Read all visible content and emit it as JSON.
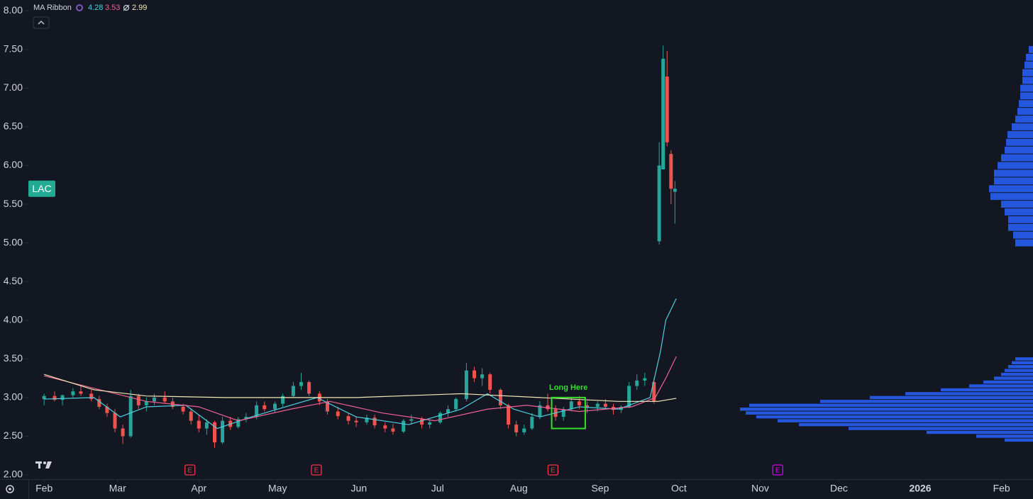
{
  "chart_data": {
    "type": "candlestick",
    "symbol": {
      "label": "LAC",
      "price": 5.7,
      "color": "#22ab94"
    },
    "indicator": {
      "name": "MA Ribbon",
      "values": [
        4.28,
        3.53,
        2.99
      ],
      "colors": [
        "#4dd0e1",
        "#f06292",
        "#f2e8b6"
      ]
    },
    "up_color": "#26a69a",
    "down_color": "#ef5350",
    "xlim": [
      25,
      408
    ],
    "ylim": [
      1.945,
      8.14
    ],
    "xticks": [
      {
        "value": 31,
        "label": "Feb"
      },
      {
        "value": 59,
        "label": "Mar"
      },
      {
        "value": 90,
        "label": "Apr"
      },
      {
        "value": 120,
        "label": "May"
      },
      {
        "value": 151,
        "label": "Jun"
      },
      {
        "value": 181,
        "label": "Jul"
      },
      {
        "value": 212,
        "label": "Aug"
      },
      {
        "value": 243,
        "label": "Sep"
      },
      {
        "value": 273,
        "label": "Oct"
      },
      {
        "value": 304,
        "label": "Nov"
      },
      {
        "value": 334,
        "label": "Dec"
      },
      {
        "value": 365,
        "label": "2026",
        "bold": true
      },
      {
        "value": 396,
        "label": "Feb"
      }
    ],
    "yticks": [
      {
        "value": 2,
        "label": "2.00"
      },
      {
        "value": 2.5,
        "label": "2.50"
      },
      {
        "value": 3,
        "label": "3.00"
      },
      {
        "value": 3.5,
        "label": "3.50"
      },
      {
        "value": 4,
        "label": "4.00"
      },
      {
        "value": 4.5,
        "label": "4.50"
      },
      {
        "value": 5,
        "label": "5.00"
      },
      {
        "value": 5.5,
        "label": "5.50"
      },
      {
        "value": 6,
        "label": "6.00"
      },
      {
        "value": 6.5,
        "label": "6.50"
      },
      {
        "value": 7,
        "label": "7.00"
      },
      {
        "value": 7.5,
        "label": "7.50"
      },
      {
        "value": 8,
        "label": "8.00"
      }
    ],
    "x": [
      31,
      35,
      38,
      42,
      45,
      49,
      52,
      55,
      58,
      61,
      64,
      67,
      70,
      73,
      77,
      80,
      84,
      87,
      90,
      93,
      96,
      99,
      102,
      105,
      108,
      112,
      115,
      119,
      122,
      126,
      129,
      132,
      136,
      139,
      143,
      147,
      150,
      154,
      157,
      161,
      164,
      168,
      171,
      175,
      178,
      182,
      185,
      188,
      192,
      195,
      198,
      201,
      205,
      208,
      211,
      214,
      217,
      220,
      223,
      226,
      229,
      232,
      235,
      238,
      242,
      245,
      248,
      251,
      254,
      257,
      260,
      263.5,
      265.5,
      267,
      268.5,
      270,
      271.5
    ],
    "open": [
      2.98,
      3.02,
      2.97,
      3.03,
      3.08,
      3.05,
      2.98,
      2.88,
      2.8,
      2.6,
      2.5,
      3.02,
      2.9,
      2.95,
      3.0,
      2.95,
      2.88,
      2.82,
      2.7,
      2.6,
      2.68,
      2.42,
      2.7,
      2.62,
      2.72,
      2.75,
      2.9,
      2.85,
      2.92,
      3.02,
      3.15,
      3.2,
      3.05,
      2.95,
      2.82,
      2.76,
      2.7,
      2.68,
      2.74,
      2.64,
      2.6,
      2.56,
      2.7,
      2.72,
      2.65,
      2.68,
      2.8,
      2.85,
      2.98,
      3.35,
      3.25,
      3.3,
      3.1,
      2.9,
      2.65,
      2.55,
      2.6,
      2.75,
      2.9,
      2.85,
      2.75,
      2.85,
      2.95,
      2.9,
      2.88,
      2.92,
      2.88,
      2.84,
      2.88,
      3.15,
      3.22,
      3.2,
      5.02,
      5.95,
      7.15,
      6.15,
      5.66
    ],
    "high": [
      3.05,
      3.08,
      3.04,
      3.12,
      3.15,
      3.1,
      3.02,
      2.92,
      2.85,
      2.65,
      3.1,
      3.05,
      3.0,
      3.05,
      3.08,
      3.0,
      2.92,
      2.86,
      2.78,
      2.72,
      2.7,
      2.75,
      2.75,
      2.75,
      2.8,
      2.95,
      2.95,
      2.95,
      3.05,
      3.2,
      3.32,
      3.22,
      3.08,
      2.98,
      2.88,
      2.8,
      2.75,
      2.78,
      2.78,
      2.68,
      2.66,
      2.72,
      2.78,
      2.75,
      2.72,
      2.82,
      2.9,
      3.0,
      3.45,
      3.4,
      3.38,
      3.32,
      3.12,
      2.92,
      2.7,
      2.65,
      2.8,
      2.95,
      3.05,
      2.9,
      2.88,
      3.0,
      3.02,
      2.95,
      2.95,
      2.98,
      2.92,
      2.9,
      3.2,
      3.3,
      3.32,
      3.25,
      6.3,
      7.55,
      7.48,
      6.2,
      5.8
    ],
    "low": [
      2.9,
      2.95,
      2.9,
      3.0,
      3.02,
      2.95,
      2.85,
      2.75,
      2.55,
      2.4,
      2.48,
      2.85,
      2.82,
      2.9,
      2.92,
      2.85,
      2.78,
      2.65,
      2.55,
      2.52,
      2.35,
      2.4,
      2.58,
      2.6,
      2.68,
      2.72,
      2.82,
      2.8,
      2.88,
      3.0,
      3.1,
      3.02,
      2.9,
      2.78,
      2.72,
      2.65,
      2.62,
      2.65,
      2.6,
      2.55,
      2.52,
      2.54,
      2.65,
      2.6,
      2.6,
      2.66,
      2.75,
      2.82,
      2.95,
      3.2,
      3.15,
      3.05,
      2.85,
      2.6,
      2.5,
      2.52,
      2.58,
      2.72,
      2.82,
      2.7,
      2.7,
      2.82,
      2.85,
      2.8,
      2.82,
      2.85,
      2.78,
      2.8,
      2.86,
      3.1,
      3.15,
      2.92,
      4.98,
      5.95,
      6.25,
      5.5,
      5.25
    ],
    "close": [
      3.02,
      2.97,
      3.03,
      3.08,
      3.05,
      2.98,
      2.88,
      2.8,
      2.6,
      2.5,
      3.02,
      2.9,
      2.95,
      3.0,
      2.95,
      2.88,
      2.82,
      2.7,
      2.6,
      2.68,
      2.42,
      2.7,
      2.62,
      2.72,
      2.75,
      2.9,
      2.85,
      2.92,
      3.02,
      3.15,
      3.2,
      3.05,
      2.95,
      2.82,
      2.76,
      2.7,
      2.68,
      2.74,
      2.64,
      2.6,
      2.56,
      2.7,
      2.72,
      2.65,
      2.68,
      2.8,
      2.85,
      2.98,
      3.35,
      3.25,
      3.3,
      3.1,
      2.9,
      2.65,
      2.55,
      2.6,
      2.75,
      2.9,
      2.85,
      2.75,
      2.85,
      2.95,
      2.9,
      2.88,
      2.92,
      2.88,
      2.84,
      2.88,
      3.15,
      3.22,
      3.25,
      2.95,
      6.0,
      7.38,
      6.3,
      5.7,
      5.7
    ],
    "ma_series": [
      {
        "color": "#4dd0e1",
        "x": [
          31,
          50,
          60,
          70,
          85,
          97,
          110,
          125,
          135,
          150,
          170,
          190,
          200,
          210,
          220,
          235,
          250,
          262,
          266,
          268,
          272
        ],
        "values": [
          2.98,
          3.0,
          2.75,
          2.88,
          2.9,
          2.6,
          2.75,
          2.9,
          3.0,
          2.75,
          2.65,
          2.85,
          3.05,
          2.85,
          2.75,
          2.88,
          2.85,
          3.0,
          3.6,
          4.0,
          4.28
        ]
      },
      {
        "color": "#f06292",
        "x": [
          31,
          50,
          70,
          90,
          105,
          125,
          140,
          160,
          180,
          200,
          215,
          235,
          255,
          264,
          268,
          272
        ],
        "values": [
          3.28,
          3.12,
          2.95,
          2.88,
          2.7,
          2.85,
          2.95,
          2.8,
          2.7,
          2.85,
          2.9,
          2.82,
          2.88,
          3.0,
          3.25,
          3.53
        ]
      },
      {
        "color": "#f2e8b6",
        "x": [
          31,
          50,
          70,
          100,
          150,
          190,
          220,
          250,
          265,
          272
        ],
        "values": [
          3.3,
          3.1,
          3.02,
          3.0,
          3.0,
          3.05,
          3.0,
          2.95,
          2.95,
          2.99
        ]
      }
    ],
    "annotation": {
      "text": "Long Here",
      "color": "#33e02a",
      "x0": 224.5,
      "x1": 237.3,
      "y0": 2.6,
      "y1": 3.0
    },
    "earnings": [
      {
        "x": 86.6,
        "label": "E",
        "color": "#f23645"
      },
      {
        "x": 134.8,
        "label": "E",
        "color": "#f23645"
      },
      {
        "x": 225,
        "label": "E",
        "color": "#f23645"
      },
      {
        "x": 310.7,
        "label": "E",
        "color": "#d500f9"
      }
    ],
    "volume_profile": {
      "color": "#2962ff",
      "prices": [
        2.45,
        2.5,
        2.55,
        2.6,
        2.65,
        2.7,
        2.75,
        2.8,
        2.85,
        2.9,
        2.95,
        3.0,
        3.05,
        3.1,
        3.15,
        3.2,
        3.25,
        3.3,
        3.35,
        3.4,
        3.45,
        3.5,
        5.0,
        5.1,
        5.2,
        5.3,
        5.4,
        5.5,
        5.6,
        5.7,
        5.8,
        5.9,
        6.0,
        6.1,
        6.2,
        6.3,
        6.4,
        6.5,
        6.6,
        6.7,
        6.8,
        6.9,
        7.0,
        7.1,
        7.2,
        7.3,
        7.4,
        7.5
      ],
      "values": [
        40,
        80,
        150,
        260,
        330,
        360,
        390,
        405,
        413,
        400,
        300,
        230,
        180,
        130,
        90,
        70,
        55,
        45,
        40,
        35,
        30,
        25,
        25,
        28,
        35,
        35,
        40,
        45,
        60,
        62,
        55,
        55,
        50,
        45,
        40,
        38,
        36,
        30,
        25,
        22,
        20,
        18,
        18,
        15,
        15,
        12,
        10,
        6
      ]
    }
  }
}
